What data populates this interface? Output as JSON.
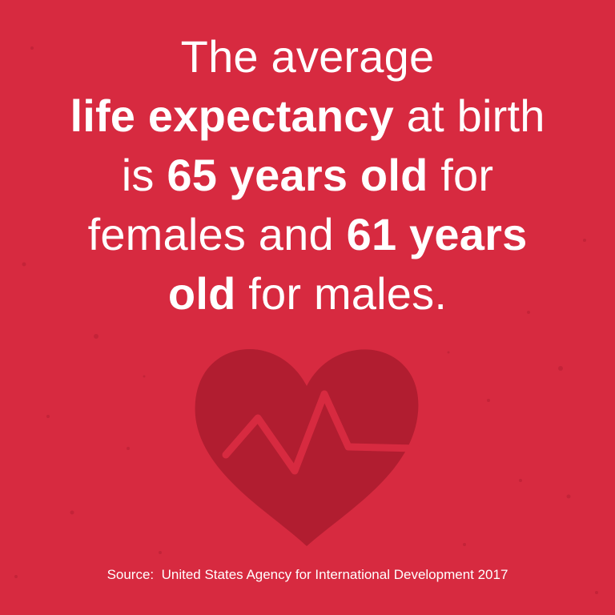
{
  "headline": {
    "lines": [
      [
        {
          "text": "The average",
          "bold": false
        }
      ],
      [
        {
          "text": "life expectancy",
          "bold": true
        },
        {
          "text": " at birth",
          "bold": false
        }
      ],
      [
        {
          "text": "is ",
          "bold": false
        },
        {
          "text": "65 years old",
          "bold": true
        },
        {
          "text": " for",
          "bold": false
        }
      ],
      [
        {
          "text": "females and ",
          "bold": false
        },
        {
          "text": "61 years",
          "bold": true
        }
      ],
      [
        {
          "text": "old",
          "bold": true
        },
        {
          "text": " for males.",
          "bold": false
        }
      ]
    ]
  },
  "source": "Source:  United States Agency for International Development 2017"
}
